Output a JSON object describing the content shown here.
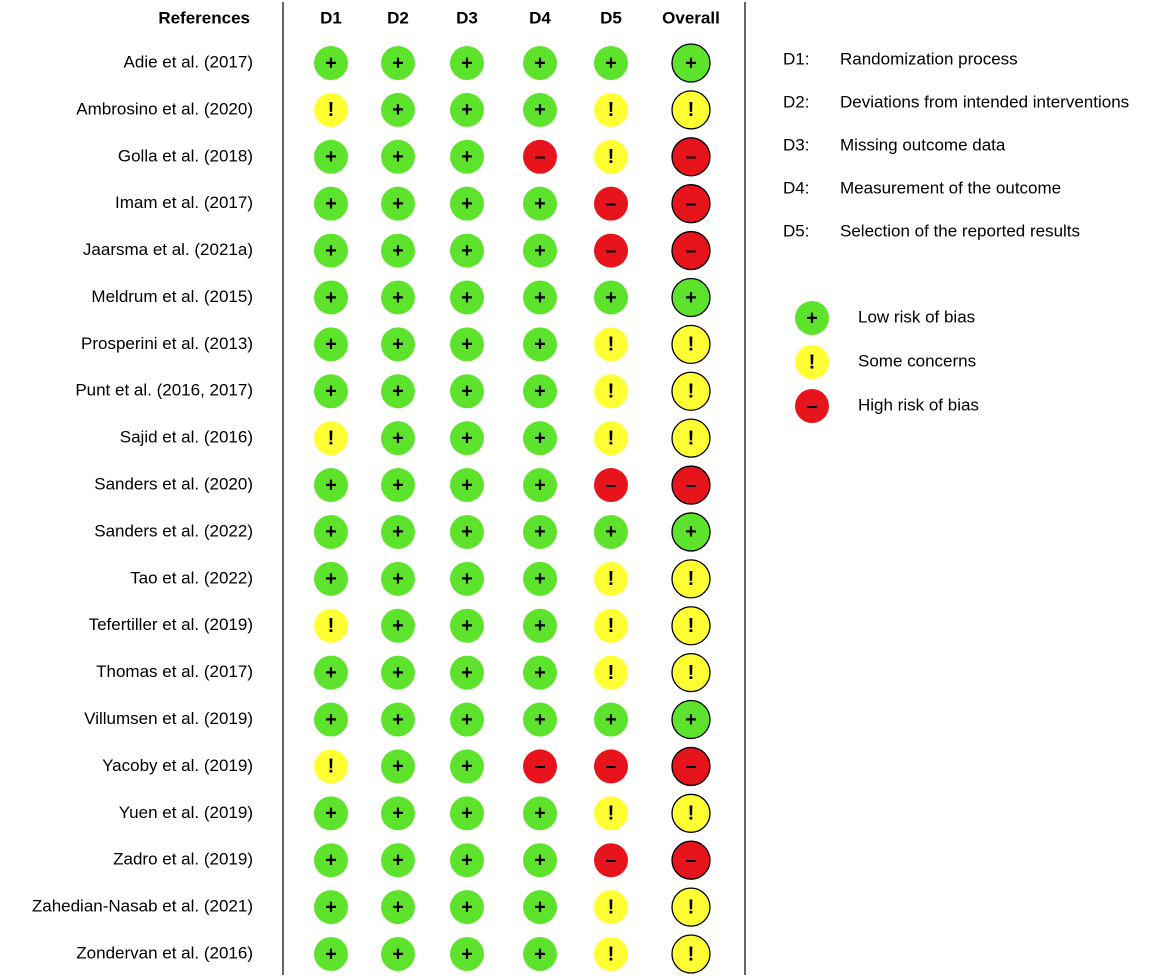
{
  "table": {
    "columns": [
      "References",
      "D1",
      "D2",
      "D3",
      "D4",
      "D5",
      "Overall"
    ],
    "rows": [
      {
        "reference": "Adie et al. (2017)",
        "judgments": [
          "+",
          "+",
          "+",
          "+",
          "+",
          "+"
        ]
      },
      {
        "reference": "Ambrosino et al. (2020)",
        "judgments": [
          "!",
          "+",
          "+",
          "+",
          "!",
          "!"
        ]
      },
      {
        "reference": "Golla et al. (2018)",
        "judgments": [
          "+",
          "+",
          "+",
          "–",
          "!",
          "–"
        ]
      },
      {
        "reference": "Imam et al. (2017)",
        "judgments": [
          "+",
          "+",
          "+",
          "+",
          "–",
          "–"
        ]
      },
      {
        "reference": "Jaarsma et al. (2021a)",
        "judgments": [
          "+",
          "+",
          "+",
          "+",
          "–",
          "–"
        ]
      },
      {
        "reference": "Meldrum et al. (2015)",
        "judgments": [
          "+",
          "+",
          "+",
          "+",
          "+",
          "+"
        ]
      },
      {
        "reference": "Prosperini et al. (2013)",
        "judgments": [
          "+",
          "+",
          "+",
          "+",
          "!",
          "!"
        ]
      },
      {
        "reference": "Punt et al. (2016, 2017)",
        "judgments": [
          "+",
          "+",
          "+",
          "+",
          "!",
          "!"
        ]
      },
      {
        "reference": "Sajid et al. (2016)",
        "judgments": [
          "!",
          "+",
          "+",
          "+",
          "!",
          "!"
        ]
      },
      {
        "reference": "Sanders et al. (2020)",
        "judgments": [
          "+",
          "+",
          "+",
          "+",
          "–",
          "–"
        ]
      },
      {
        "reference": "Sanders et al. (2022)",
        "judgments": [
          "+",
          "+",
          "+",
          "+",
          "+",
          "+"
        ]
      },
      {
        "reference": "Tao et al. (2022)",
        "judgments": [
          "+",
          "+",
          "+",
          "+",
          "!",
          "!"
        ]
      },
      {
        "reference": "Tefertiller et al. (2019)",
        "judgments": [
          "!",
          "+",
          "+",
          "+",
          "!",
          "!"
        ]
      },
      {
        "reference": "Thomas et al. (2017)",
        "judgments": [
          "+",
          "+",
          "+",
          "+",
          "!",
          "!"
        ]
      },
      {
        "reference": "Villumsen et al. (2019)",
        "judgments": [
          "+",
          "+",
          "+",
          "+",
          "+",
          "+"
        ]
      },
      {
        "reference": "Yacoby et al. (2019)",
        "judgments": [
          "!",
          "+",
          "+",
          "–",
          "–",
          "–"
        ]
      },
      {
        "reference": "Yuen et al. (2019)",
        "judgments": [
          "+",
          "+",
          "+",
          "+",
          "!",
          "!"
        ]
      },
      {
        "reference": "Zadro et al. (2019)",
        "judgments": [
          "+",
          "+",
          "+",
          "+",
          "–",
          "–"
        ]
      },
      {
        "reference": "Zahedian-Nasab et al. (2021)",
        "judgments": [
          "+",
          "+",
          "+",
          "+",
          "!",
          "!"
        ]
      },
      {
        "reference": "Zondervan et al. (2016)",
        "judgments": [
          "+",
          "+",
          "+",
          "+",
          "!",
          "!"
        ]
      }
    ]
  },
  "domains": [
    {
      "code": "D1:",
      "label": "Randomization process"
    },
    {
      "code": "D2:",
      "label": "Deviations from intended interventions"
    },
    {
      "code": "D3:",
      "label": "Missing outcome data"
    },
    {
      "code": "D4:",
      "label": "Measurement of the outcome"
    },
    {
      "code": "D5:",
      "label": "Selection of the reported results"
    }
  ],
  "legend": [
    {
      "symbol": "+",
      "label": "Low risk of bias",
      "color": "#5ee32d"
    },
    {
      "symbol": "!",
      "label": "Some concerns",
      "color": "#ffff33"
    },
    {
      "symbol": "–",
      "label": "High risk of bias",
      "color": "#e8141b"
    }
  ]
}
